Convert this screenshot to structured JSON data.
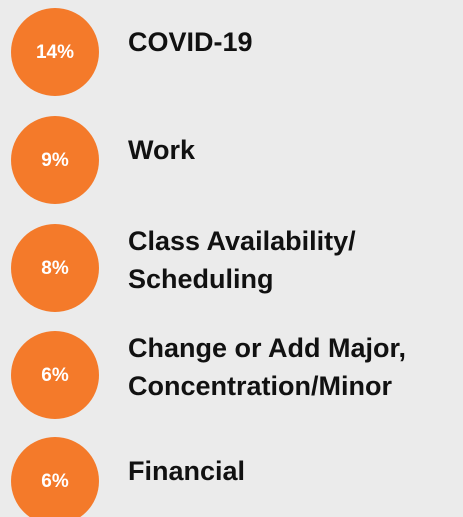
{
  "items": [
    {
      "percent": "14%",
      "label": [
        "COVID-19"
      ]
    },
    {
      "percent": "9%",
      "label": [
        "Work"
      ]
    },
    {
      "percent": "8%",
      "label": [
        "Class Availability/",
        "Scheduling"
      ]
    },
    {
      "percent": "6%",
      "label": [
        "Change or Add Major,",
        "Concentration/Minor"
      ]
    },
    {
      "percent": "6%",
      "label": [
        "Financial"
      ]
    }
  ]
}
